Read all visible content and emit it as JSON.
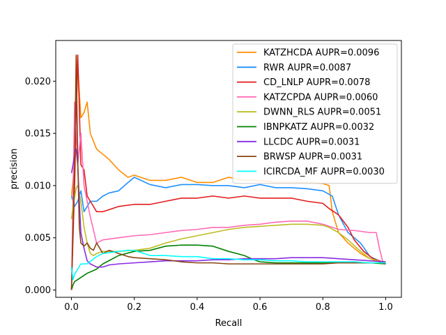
{
  "chart_data": {
    "type": "line",
    "xlabel": "Recall",
    "ylabel": "precision",
    "xlim": [
      -0.05,
      1.05
    ],
    "ylim": [
      -0.0007,
      0.0239
    ],
    "xticks": [
      0.0,
      0.2,
      0.4,
      0.6,
      0.8,
      1.0
    ],
    "xtick_labels": [
      "0.0",
      "0.2",
      "0.4",
      "0.6",
      "0.8",
      "1.0"
    ],
    "yticks": [
      0.0,
      0.005,
      0.01,
      0.015,
      0.02
    ],
    "ytick_labels": [
      "0.000",
      "0.005",
      "0.010",
      "0.015",
      "0.020"
    ],
    "grid": false,
    "legend_position": "top-right",
    "series": [
      {
        "name": "KATZHCDA AUPR=0.0096",
        "color": "#ff8c00",
        "x": [
          0.0,
          0.01,
          0.02,
          0.03,
          0.04,
          0.05,
          0.06,
          0.08,
          0.1,
          0.12,
          0.15,
          0.18,
          0.2,
          0.25,
          0.3,
          0.35,
          0.4,
          0.45,
          0.5,
          0.55,
          0.6,
          0.65,
          0.7,
          0.75,
          0.8,
          0.82,
          0.83,
          0.85,
          0.88,
          0.92,
          0.95,
          1.0
        ],
        "y": [
          0.009,
          0.012,
          0.0215,
          0.0165,
          0.017,
          0.018,
          0.015,
          0.0135,
          0.013,
          0.0125,
          0.0115,
          0.0108,
          0.011,
          0.0105,
          0.0105,
          0.0108,
          0.0103,
          0.0103,
          0.0108,
          0.0105,
          0.0105,
          0.0103,
          0.0103,
          0.0103,
          0.0102,
          0.01,
          0.0075,
          0.0055,
          0.0045,
          0.0035,
          0.003,
          0.0025
        ]
      },
      {
        "name": "RWR AUPR=0.0087",
        "color": "#1e90ff",
        "x": [
          0.0,
          0.01,
          0.02,
          0.03,
          0.04,
          0.05,
          0.06,
          0.08,
          0.1,
          0.12,
          0.15,
          0.18,
          0.2,
          0.25,
          0.3,
          0.35,
          0.4,
          0.45,
          0.5,
          0.55,
          0.6,
          0.65,
          0.7,
          0.75,
          0.8,
          0.83,
          0.85,
          0.88,
          0.92,
          0.95,
          1.0
        ],
        "y": [
          0.009,
          0.008,
          0.0085,
          0.0095,
          0.0075,
          0.008,
          0.0085,
          0.0085,
          0.009,
          0.0093,
          0.0095,
          0.0103,
          0.0108,
          0.0101,
          0.0098,
          0.0101,
          0.0101,
          0.01,
          0.01,
          0.0098,
          0.0101,
          0.0098,
          0.0098,
          0.0097,
          0.0095,
          0.009,
          0.0072,
          0.0055,
          0.0045,
          0.0032,
          0.0025
        ]
      },
      {
        "name": "CD_LNLP AUPR=0.0078",
        "color": "#e31a1c",
        "x": [
          0.0,
          0.01,
          0.02,
          0.025,
          0.03,
          0.04,
          0.05,
          0.06,
          0.08,
          0.1,
          0.15,
          0.2,
          0.25,
          0.3,
          0.35,
          0.4,
          0.45,
          0.5,
          0.55,
          0.6,
          0.65,
          0.7,
          0.75,
          0.8,
          0.82,
          0.85,
          0.88,
          0.9,
          0.93,
          0.96,
          1.0
        ],
        "y": [
          0.0,
          0.01,
          0.0225,
          0.0175,
          0.012,
          0.0115,
          0.009,
          0.0085,
          0.0075,
          0.0075,
          0.008,
          0.0082,
          0.0082,
          0.0085,
          0.0088,
          0.0088,
          0.009,
          0.0088,
          0.009,
          0.0088,
          0.0088,
          0.0088,
          0.0085,
          0.0083,
          0.0078,
          0.0072,
          0.006,
          0.0048,
          0.0037,
          0.003,
          0.0026
        ]
      },
      {
        "name": "KATZCPDA AUPR=0.0060",
        "color": "#ff69b4",
        "x": [
          0.0,
          0.01,
          0.015,
          0.02,
          0.03,
          0.04,
          0.05,
          0.06,
          0.08,
          0.1,
          0.15,
          0.2,
          0.25,
          0.3,
          0.35,
          0.4,
          0.45,
          0.5,
          0.55,
          0.6,
          0.65,
          0.7,
          0.75,
          0.8,
          0.85,
          0.9,
          0.95,
          0.97,
          0.98,
          0.99,
          1.0
        ],
        "y": [
          0.0,
          0.018,
          0.0155,
          0.012,
          0.015,
          0.01,
          0.0085,
          0.007,
          0.0045,
          0.0048,
          0.005,
          0.0052,
          0.0053,
          0.0055,
          0.0057,
          0.0058,
          0.006,
          0.006,
          0.0062,
          0.0063,
          0.0065,
          0.0066,
          0.0066,
          0.0063,
          0.0058,
          0.0057,
          0.0055,
          0.0055,
          0.004,
          0.0028,
          0.0025
        ]
      },
      {
        "name": "DWNN_RLS AUPR=0.0051",
        "color": "#bcbd22",
        "x": [
          0.0,
          0.005,
          0.01,
          0.015,
          0.02,
          0.03,
          0.04,
          0.05,
          0.06,
          0.07,
          0.08,
          0.1,
          0.15,
          0.2,
          0.25,
          0.3,
          0.35,
          0.4,
          0.45,
          0.5,
          0.55,
          0.6,
          0.65,
          0.7,
          0.75,
          0.8,
          0.82,
          0.85,
          0.88,
          0.92,
          0.95,
          1.0
        ],
        "y": [
          0.0068,
          0.008,
          0.0088,
          0.0098,
          0.01,
          0.0085,
          0.006,
          0.0045,
          0.0035,
          0.0033,
          0.0035,
          0.0037,
          0.0037,
          0.0038,
          0.004,
          0.0045,
          0.0049,
          0.0052,
          0.0055,
          0.0058,
          0.006,
          0.0061,
          0.0062,
          0.0063,
          0.0063,
          0.0062,
          0.006,
          0.0055,
          0.0048,
          0.0037,
          0.003,
          0.0026
        ]
      },
      {
        "name": "IBNPKATZ AUPR=0.0032",
        "color": "#008000",
        "x": [
          0.0,
          0.005,
          0.01,
          0.02,
          0.03,
          0.05,
          0.08,
          0.1,
          0.15,
          0.2,
          0.25,
          0.3,
          0.35,
          0.4,
          0.45,
          0.5,
          0.55,
          0.58,
          0.6,
          0.65,
          0.7,
          0.75,
          0.8,
          0.85,
          0.9,
          0.95,
          1.0
        ],
        "y": [
          0.0,
          0.0005,
          0.0008,
          0.001,
          0.0012,
          0.0016,
          0.002,
          0.0025,
          0.0033,
          0.0037,
          0.0038,
          0.0042,
          0.0043,
          0.0043,
          0.0042,
          0.0037,
          0.0033,
          0.0029,
          0.0027,
          0.0026,
          0.0026,
          0.0026,
          0.0026,
          0.0026,
          0.0026,
          0.0026,
          0.0025
        ]
      },
      {
        "name": "LLCDC AUPR=0.0031",
        "color": "#8a2be2",
        "x": [
          0.0,
          0.005,
          0.01,
          0.015,
          0.02,
          0.025,
          0.03,
          0.04,
          0.05,
          0.06,
          0.08,
          0.1,
          0.12,
          0.15,
          0.2,
          0.25,
          0.3,
          0.35,
          0.4,
          0.45,
          0.5,
          0.55,
          0.6,
          0.65,
          0.7,
          0.75,
          0.8,
          0.85,
          0.9,
          0.95,
          1.0
        ],
        "y": [
          0.0112,
          0.012,
          0.013,
          0.0135,
          0.012,
          0.0085,
          0.0055,
          0.004,
          0.0028,
          0.0025,
          0.0022,
          0.0022,
          0.0024,
          0.0025,
          0.0026,
          0.0027,
          0.0028,
          0.0028,
          0.0028,
          0.0029,
          0.0029,
          0.003,
          0.003,
          0.003,
          0.0031,
          0.0031,
          0.0031,
          0.003,
          0.0029,
          0.0028,
          0.0027
        ]
      },
      {
        "name": "BRWSP AUPR=0.0031",
        "color": "#8b4513",
        "x": [
          0.0,
          0.01,
          0.015,
          0.02,
          0.025,
          0.03,
          0.04,
          0.05,
          0.06,
          0.07,
          0.08,
          0.1,
          0.12,
          0.15,
          0.18,
          0.2,
          0.25,
          0.3,
          0.35,
          0.4,
          0.45,
          0.5,
          0.55,
          0.6,
          0.65,
          0.7,
          0.75,
          0.8,
          0.85,
          0.9,
          0.95,
          1.0
        ],
        "y": [
          0.0,
          0.012,
          0.0225,
          0.0125,
          0.006,
          0.0045,
          0.0042,
          0.0045,
          0.004,
          0.0038,
          0.0045,
          0.0035,
          0.0038,
          0.0035,
          0.0032,
          0.0031,
          0.003,
          0.0029,
          0.0027,
          0.0026,
          0.0026,
          0.0025,
          0.0025,
          0.0025,
          0.0025,
          0.0025,
          0.0025,
          0.0025,
          0.0026,
          0.0026,
          0.0026,
          0.0026
        ]
      },
      {
        "name": "ICIRCDA_MF AUPR=0.0030",
        "color": "#00ffff",
        "x": [
          0.0,
          0.005,
          0.01,
          0.02,
          0.03,
          0.05,
          0.08,
          0.1,
          0.15,
          0.18,
          0.2,
          0.22,
          0.25,
          0.3,
          0.35,
          0.4,
          0.45,
          0.5,
          0.55,
          0.6,
          0.65,
          0.7,
          0.75,
          0.8,
          0.85,
          0.9,
          0.95,
          1.0
        ],
        "y": [
          0.0022,
          0.001,
          0.0015,
          0.002,
          0.0025,
          0.0025,
          0.0032,
          0.0035,
          0.0037,
          0.0038,
          0.0038,
          0.0036,
          0.0033,
          0.0033,
          0.0032,
          0.0032,
          0.003,
          0.003,
          0.0029,
          0.0029,
          0.0028,
          0.0028,
          0.0027,
          0.0027,
          0.0027,
          0.0027,
          0.0026,
          0.0026
        ]
      }
    ]
  }
}
